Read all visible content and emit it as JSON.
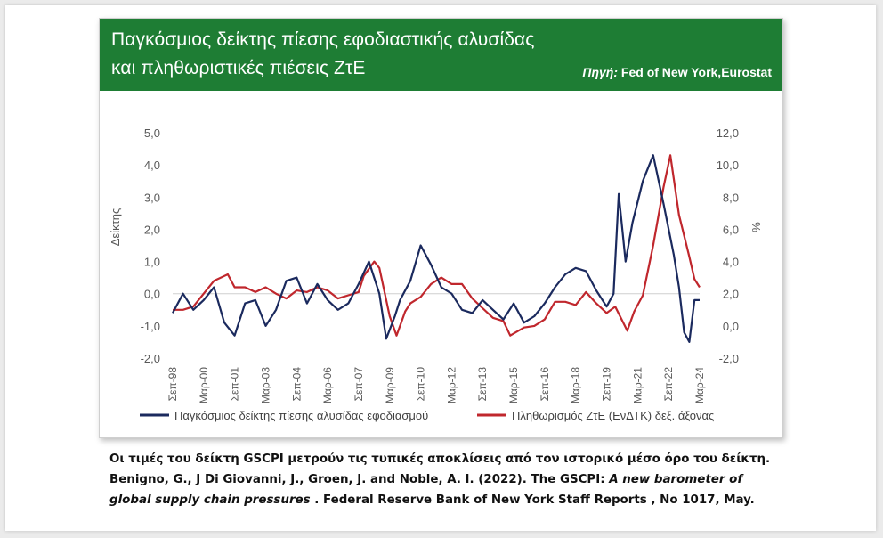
{
  "header": {
    "title_line1": "Παγκόσμιος δείκτης πίεσης εφοδιαστικής αλυσίδας",
    "title_line2": "και πληθωριστικές πιέσεις ΖτΕ",
    "source_label": "Πηγή:",
    "source_text": " Fed of New York,Eurostat"
  },
  "colors": {
    "header_bg": "#1e7d34",
    "gscpi": "#1b2a5e",
    "inflation": "#c0272d"
  },
  "chart_data": {
    "type": "line",
    "x_ticks": [
      "Σεπ-98",
      "Μαρ-00",
      "Σεπ-01",
      "Μαρ-03",
      "Σεπ-04",
      "Μαρ-06",
      "Σεπ-07",
      "Μαρ-09",
      "Σεπ-10",
      "Μαρ-12",
      "Σεπ-13",
      "Μαρ-15",
      "Σεπ-16",
      "Μαρ-18",
      "Σεπ-19",
      "Μαρ-21",
      "Σεπ-22",
      "Μαρ-24"
    ],
    "ylabel_left": "Δείκτης",
    "ylabel_right": "%",
    "left_ticks": [
      "5,0",
      "4,0",
      "3,0",
      "2,0",
      "1,0",
      "0,0",
      "-1,0",
      "-2,0"
    ],
    "right_ticks": [
      "12,0",
      "10,0",
      "8,0",
      "6,0",
      "4,0",
      "2,0",
      "0,0",
      "-2,0"
    ],
    "ylim_left": [
      -2,
      5
    ],
    "ylim_right": [
      -2,
      12
    ],
    "x_range": [
      "1998-09",
      "2024-03"
    ],
    "series": [
      {
        "name": "Παγκόσμιος δείκτης πίεσης αλυσίδας εφοδιασμού",
        "axis": "left",
        "points": [
          [
            "1998-09",
            -0.6
          ],
          [
            "1999-03",
            0.0
          ],
          [
            "1999-09",
            -0.5
          ],
          [
            "2000-03",
            -0.2
          ],
          [
            "2000-09",
            0.2
          ],
          [
            "2001-03",
            -0.9
          ],
          [
            "2001-09",
            -1.3
          ],
          [
            "2002-03",
            -0.3
          ],
          [
            "2002-09",
            -0.2
          ],
          [
            "2003-03",
            -1.0
          ],
          [
            "2003-09",
            -0.5
          ],
          [
            "2004-03",
            0.4
          ],
          [
            "2004-09",
            0.5
          ],
          [
            "2005-03",
            -0.3
          ],
          [
            "2005-09",
            0.3
          ],
          [
            "2006-03",
            -0.2
          ],
          [
            "2006-09",
            -0.5
          ],
          [
            "2007-03",
            -0.3
          ],
          [
            "2007-09",
            0.3
          ],
          [
            "2008-03",
            1.0
          ],
          [
            "2008-09",
            0.0
          ],
          [
            "2009-01",
            -1.4
          ],
          [
            "2009-06",
            -0.7
          ],
          [
            "2009-09",
            -0.2
          ],
          [
            "2010-03",
            0.4
          ],
          [
            "2010-09",
            1.5
          ],
          [
            "2011-03",
            0.9
          ],
          [
            "2011-09",
            0.2
          ],
          [
            "2012-03",
            0.0
          ],
          [
            "2012-09",
            -0.5
          ],
          [
            "2013-03",
            -0.6
          ],
          [
            "2013-09",
            -0.2
          ],
          [
            "2014-03",
            -0.5
          ],
          [
            "2014-09",
            -0.8
          ],
          [
            "2015-03",
            -0.3
          ],
          [
            "2015-09",
            -0.9
          ],
          [
            "2016-03",
            -0.7
          ],
          [
            "2016-09",
            -0.3
          ],
          [
            "2017-03",
            0.2
          ],
          [
            "2017-09",
            0.6
          ],
          [
            "2018-03",
            0.8
          ],
          [
            "2018-09",
            0.7
          ],
          [
            "2019-03",
            0.1
          ],
          [
            "2019-09",
            -0.4
          ],
          [
            "2020-01",
            0.0
          ],
          [
            "2020-04",
            3.1
          ],
          [
            "2020-08",
            1.0
          ],
          [
            "2020-12",
            2.2
          ],
          [
            "2021-06",
            3.5
          ],
          [
            "2021-12",
            4.3
          ],
          [
            "2022-06",
            2.8
          ],
          [
            "2022-12",
            1.2
          ],
          [
            "2023-03",
            0.2
          ],
          [
            "2023-06",
            -1.2
          ],
          [
            "2023-09",
            -1.5
          ],
          [
            "2023-12",
            -0.2
          ],
          [
            "2024-03",
            -0.2
          ]
        ]
      },
      {
        "name": "Πληθωρισμός ΖτΕ (ΕνΔΤΚ) δεξ. άξονας",
        "axis": "right",
        "points": [
          [
            "1998-09",
            1.0
          ],
          [
            "1999-03",
            1.0
          ],
          [
            "1999-09",
            1.2
          ],
          [
            "2000-03",
            2.0
          ],
          [
            "2000-09",
            2.8
          ],
          [
            "2001-05",
            3.2
          ],
          [
            "2001-09",
            2.4
          ],
          [
            "2002-03",
            2.4
          ],
          [
            "2002-09",
            2.1
          ],
          [
            "2003-03",
            2.4
          ],
          [
            "2003-09",
            2.0
          ],
          [
            "2004-03",
            1.7
          ],
          [
            "2004-09",
            2.2
          ],
          [
            "2005-03",
            2.1
          ],
          [
            "2005-09",
            2.4
          ],
          [
            "2006-03",
            2.2
          ],
          [
            "2006-09",
            1.7
          ],
          [
            "2007-03",
            1.9
          ],
          [
            "2007-09",
            2.1
          ],
          [
            "2007-12",
            3.1
          ],
          [
            "2008-06",
            4.0
          ],
          [
            "2008-09",
            3.6
          ],
          [
            "2009-03",
            0.6
          ],
          [
            "2009-07",
            -0.6
          ],
          [
            "2009-12",
            0.9
          ],
          [
            "2010-03",
            1.4
          ],
          [
            "2010-09",
            1.8
          ],
          [
            "2011-03",
            2.6
          ],
          [
            "2011-09",
            3.0
          ],
          [
            "2012-03",
            2.6
          ],
          [
            "2012-09",
            2.6
          ],
          [
            "2013-03",
            1.7
          ],
          [
            "2013-09",
            1.1
          ],
          [
            "2014-03",
            0.5
          ],
          [
            "2014-09",
            0.3
          ],
          [
            "2015-01",
            -0.6
          ],
          [
            "2015-09",
            -0.1
          ],
          [
            "2016-03",
            0.0
          ],
          [
            "2016-09",
            0.4
          ],
          [
            "2017-03",
            1.5
          ],
          [
            "2017-09",
            1.5
          ],
          [
            "2018-03",
            1.3
          ],
          [
            "2018-09",
            2.1
          ],
          [
            "2019-03",
            1.4
          ],
          [
            "2019-09",
            0.8
          ],
          [
            "2020-02",
            1.2
          ],
          [
            "2020-09",
            -0.3
          ],
          [
            "2021-01",
            0.9
          ],
          [
            "2021-06",
            1.9
          ],
          [
            "2021-12",
            5.0
          ],
          [
            "2022-06",
            8.6
          ],
          [
            "2022-10",
            10.6
          ],
          [
            "2023-03",
            6.9
          ],
          [
            "2023-09",
            4.3
          ],
          [
            "2023-12",
            2.9
          ],
          [
            "2024-03",
            2.4
          ]
        ]
      }
    ]
  },
  "footnote": {
    "line1": "Οι τιμές του δείκτη GSCPI μετρούν τις τυπικές αποκλίσεις από τον ιστορικό μέσο όρο του δείκτη.",
    "line2_a": "Benigno, G., J Di Giovanni, J., Groen, J. and Noble, A. I. (2022). The GSCPI: ",
    "line2_b": "A new barometer of",
    "line3_a": "global supply chain pressures",
    "line3_b": " . Federal Reserve Bank of New York Staff Reports , No 1017, May."
  }
}
